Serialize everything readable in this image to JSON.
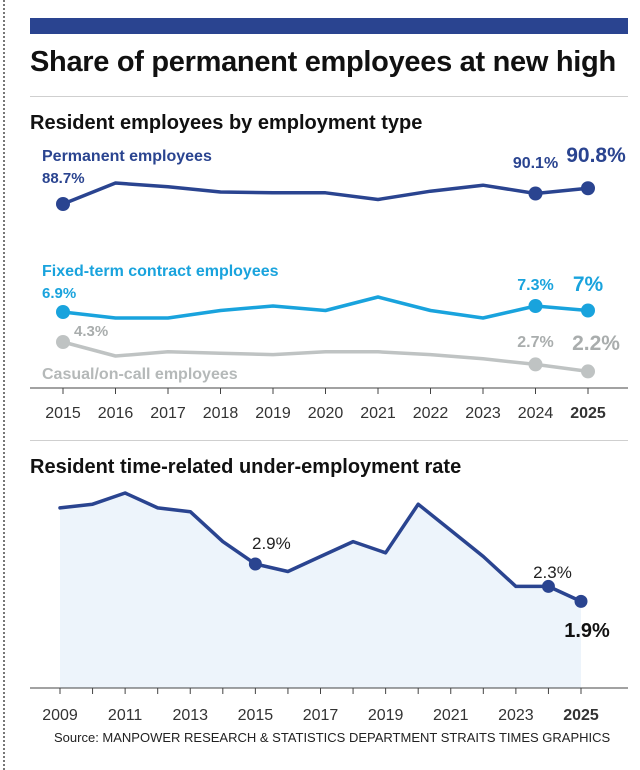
{
  "header": {
    "title": "Share of permanent employees at new high",
    "source": "Source: MANPOWER RESEARCH & STATISTICS DEPARTMENT  STRAITS TIMES GRAPHICS"
  },
  "colors": {
    "accent": "#2a4490",
    "permanent": "#2a4490",
    "contract": "#19a3dd",
    "casual": "#bfc3c3",
    "area_fill": "#edf4fb"
  },
  "chart_data": [
    {
      "type": "line",
      "title": "Resident employees by employment type",
      "x": [
        "2015",
        "2016",
        "2017",
        "2018",
        "2019",
        "2020",
        "2021",
        "2022",
        "2023",
        "2024",
        "2025"
      ],
      "ylim": [
        0,
        100
      ],
      "series": [
        {
          "name": "Permanent employees",
          "key": "permanent",
          "values": [
            88.7,
            91.5,
            91.0,
            90.3,
            90.2,
            90.2,
            89.3,
            90.4,
            91.2,
            90.1,
            90.8
          ],
          "labels": {
            "start": "88.7%",
            "prev": "90.1%",
            "last": "90.8%"
          }
        },
        {
          "name": "Fixed-term contract employees",
          "key": "contract",
          "values": [
            6.9,
            6.5,
            6.5,
            7.0,
            7.3,
            7.0,
            7.9,
            7.0,
            6.5,
            7.3,
            7.0
          ],
          "labels": {
            "start": "6.9%",
            "prev": "7.3%",
            "last": "7%"
          }
        },
        {
          "name": "Casual/on-call employees",
          "key": "casual",
          "values": [
            4.3,
            3.3,
            3.6,
            3.5,
            3.4,
            3.6,
            3.6,
            3.4,
            3.1,
            2.7,
            2.2
          ],
          "labels": {
            "start": "4.3%",
            "prev": "2.7%",
            "last": "2.2%"
          }
        }
      ]
    },
    {
      "type": "area",
      "title": "Resident time-related under-employment rate",
      "x": [
        2009,
        2010,
        2011,
        2012,
        2013,
        2014,
        2015,
        2016,
        2017,
        2018,
        2019,
        2020,
        2021,
        2022,
        2023,
        2024,
        2025
      ],
      "tick_labels": [
        "2009",
        "2011",
        "2013",
        "2015",
        "2017",
        "2019",
        "2021",
        "2023",
        "2025"
      ],
      "values": [
        4.4,
        4.5,
        4.8,
        4.4,
        4.3,
        3.5,
        2.9,
        2.7,
        3.1,
        3.5,
        3.2,
        4.5,
        3.8,
        3.1,
        2.3,
        2.3,
        1.9
      ],
      "ylim": [
        0,
        5
      ],
      "labels": {
        "y2015": "2.9%",
        "y2024": "2.3%",
        "y2025": "1.9%"
      }
    }
  ]
}
